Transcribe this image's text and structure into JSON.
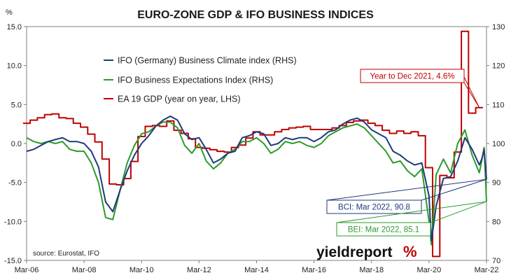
{
  "chart_data": {
    "type": "line",
    "title": "EURO-ZONE GDP & IFO BUSINESS INDICES",
    "y_left_unit": "%",
    "y_left_range": [
      -15,
      15
    ],
    "y_left_ticks": [
      "15.0",
      "10.0",
      "5.0",
      "0.0",
      "-5.0",
      "-10.0",
      "-15.0"
    ],
    "y_right_range": [
      70,
      130
    ],
    "y_right_ticks": [
      "130",
      "120",
      "110",
      "100",
      "90",
      "80",
      "70"
    ],
    "x_range": [
      "2006-03",
      "2022-03"
    ],
    "x_ticks": [
      "Mar-06",
      "Mar-08",
      "Mar-10",
      "Mar-12",
      "Mar-14",
      "Mar-16",
      "Mar-18",
      "Mar-20",
      "Mar-22"
    ],
    "grid": "none",
    "legend_position": "top-left",
    "series": [
      {
        "name": "IFO (Germany) Business Climate index (RHS)",
        "axis": "right",
        "color": "#1f3a7a",
        "points": [
          [
            "2006-03",
            98.0
          ],
          [
            "2006-06",
            98.5
          ],
          [
            "2006-09",
            99.5
          ],
          [
            "2006-12",
            100.5
          ],
          [
            "2007-03",
            101.0
          ],
          [
            "2007-06",
            101.5
          ],
          [
            "2007-09",
            100.5
          ],
          [
            "2007-12",
            100.5
          ],
          [
            "2008-03",
            100.0
          ],
          [
            "2008-06",
            98.0
          ],
          [
            "2008-09",
            94.0
          ],
          [
            "2008-12",
            85.0
          ],
          [
            "2009-03",
            82.5
          ],
          [
            "2009-06",
            88.0
          ],
          [
            "2009-09",
            93.0
          ],
          [
            "2009-12",
            97.0
          ],
          [
            "2010-03",
            100.0
          ],
          [
            "2010-06",
            102.0
          ],
          [
            "2010-09",
            104.5
          ],
          [
            "2010-12",
            106.0
          ],
          [
            "2011-03",
            107.0
          ],
          [
            "2011-06",
            106.0
          ],
          [
            "2011-09",
            102.5
          ],
          [
            "2011-12",
            101.0
          ],
          [
            "2012-03",
            101.5
          ],
          [
            "2012-06",
            98.5
          ],
          [
            "2012-09",
            95.0
          ],
          [
            "2012-12",
            96.0
          ],
          [
            "2013-03",
            97.5
          ],
          [
            "2013-06",
            98.0
          ],
          [
            "2013-09",
            101.5
          ],
          [
            "2013-12",
            102.0
          ],
          [
            "2014-03",
            103.0
          ],
          [
            "2014-06",
            102.5
          ],
          [
            "2014-09",
            99.5
          ],
          [
            "2014-12",
            100.0
          ],
          [
            "2015-03",
            101.5
          ],
          [
            "2015-06",
            101.0
          ],
          [
            "2015-09",
            101.5
          ],
          [
            "2015-12",
            101.5
          ],
          [
            "2016-03",
            100.5
          ],
          [
            "2016-06",
            101.5
          ],
          [
            "2016-09",
            103.0
          ],
          [
            "2016-12",
            103.5
          ],
          [
            "2017-03",
            105.0
          ],
          [
            "2017-06",
            106.0
          ],
          [
            "2017-09",
            106.5
          ],
          [
            "2017-12",
            105.5
          ],
          [
            "2018-03",
            103.5
          ],
          [
            "2018-06",
            102.5
          ],
          [
            "2018-09",
            101.5
          ],
          [
            "2018-12",
            98.0
          ],
          [
            "2019-03",
            97.0
          ],
          [
            "2019-06",
            95.5
          ],
          [
            "2019-09",
            94.5
          ],
          [
            "2019-12",
            95.0
          ],
          [
            "2020-03",
            86.5
          ],
          [
            "2020-04",
            75.0
          ],
          [
            "2020-06",
            84.0
          ],
          [
            "2020-09",
            91.0
          ],
          [
            "2020-12",
            91.5
          ],
          [
            "2021-03",
            95.5
          ],
          [
            "2021-06",
            101.5
          ],
          [
            "2021-09",
            98.5
          ],
          [
            "2021-12",
            94.5
          ],
          [
            "2022-01",
            96.0
          ],
          [
            "2022-02",
            98.5
          ],
          [
            "2022-03",
            90.8
          ]
        ]
      },
      {
        "name": "IFO Business Expectations Index (RHS)",
        "axis": "right",
        "color": "#2b9a2b",
        "points": [
          [
            "2006-03",
            101.5
          ],
          [
            "2006-06",
            100.5
          ],
          [
            "2006-09",
            100.0
          ],
          [
            "2006-12",
            100.5
          ],
          [
            "2007-03",
            100.0
          ],
          [
            "2007-06",
            100.5
          ],
          [
            "2007-09",
            98.5
          ],
          [
            "2007-12",
            98.0
          ],
          [
            "2008-03",
            98.0
          ],
          [
            "2008-06",
            95.0
          ],
          [
            "2008-09",
            90.0
          ],
          [
            "2008-12",
            81.0
          ],
          [
            "2009-03",
            80.5
          ],
          [
            "2009-06",
            88.0
          ],
          [
            "2009-09",
            95.0
          ],
          [
            "2009-12",
            99.5
          ],
          [
            "2010-03",
            102.5
          ],
          [
            "2010-06",
            103.0
          ],
          [
            "2010-09",
            104.5
          ],
          [
            "2010-12",
            105.5
          ],
          [
            "2011-03",
            105.5
          ],
          [
            "2011-06",
            104.0
          ],
          [
            "2011-09",
            99.5
          ],
          [
            "2011-12",
            97.5
          ],
          [
            "2012-03",
            100.0
          ],
          [
            "2012-06",
            95.5
          ],
          [
            "2012-09",
            93.5
          ],
          [
            "2012-12",
            95.0
          ],
          [
            "2013-03",
            97.5
          ],
          [
            "2013-06",
            98.5
          ],
          [
            "2013-09",
            100.5
          ],
          [
            "2013-12",
            100.5
          ],
          [
            "2014-03",
            101.5
          ],
          [
            "2014-06",
            100.0
          ],
          [
            "2014-09",
            97.5
          ],
          [
            "2014-12",
            98.5
          ],
          [
            "2015-03",
            100.5
          ],
          [
            "2015-06",
            100.0
          ],
          [
            "2015-09",
            100.5
          ],
          [
            "2015-12",
            99.5
          ],
          [
            "2016-03",
            99.0
          ],
          [
            "2016-06",
            100.0
          ],
          [
            "2016-09",
            102.0
          ],
          [
            "2016-12",
            103.0
          ],
          [
            "2017-03",
            104.0
          ],
          [
            "2017-06",
            104.5
          ],
          [
            "2017-09",
            105.0
          ],
          [
            "2017-12",
            104.0
          ],
          [
            "2018-03",
            102.0
          ],
          [
            "2018-06",
            100.0
          ],
          [
            "2018-09",
            98.0
          ],
          [
            "2018-12",
            95.0
          ],
          [
            "2019-03",
            95.5
          ],
          [
            "2019-06",
            93.0
          ],
          [
            "2019-09",
            91.5
          ],
          [
            "2019-12",
            93.5
          ],
          [
            "2020-03",
            80.0
          ],
          [
            "2020-04",
            74.0
          ],
          [
            "2020-06",
            92.0
          ],
          [
            "2020-09",
            96.0
          ],
          [
            "2020-12",
            92.5
          ],
          [
            "2021-03",
            100.0
          ],
          [
            "2021-06",
            103.5
          ],
          [
            "2021-09",
            97.0
          ],
          [
            "2021-12",
            92.5
          ],
          [
            "2022-01",
            95.5
          ],
          [
            "2022-02",
            99.0
          ],
          [
            "2022-03",
            85.1
          ]
        ]
      },
      {
        "name": "EA 19 GDP (year on year, LHS)",
        "axis": "left",
        "color": "#c00000",
        "points": [
          [
            "2006-03",
            2.6
          ],
          [
            "2006-06",
            3.0
          ],
          [
            "2006-09",
            3.3
          ],
          [
            "2006-12",
            3.7
          ],
          [
            "2007-03",
            3.8
          ],
          [
            "2007-06",
            3.3
          ],
          [
            "2007-09",
            3.2
          ],
          [
            "2007-12",
            2.6
          ],
          [
            "2008-03",
            2.1
          ],
          [
            "2008-06",
            1.2
          ],
          [
            "2008-09",
            0.2
          ],
          [
            "2008-12",
            -2.0
          ],
          [
            "2009-03",
            -5.2
          ],
          [
            "2009-06",
            -5.3
          ],
          [
            "2009-09",
            -4.5
          ],
          [
            "2009-12",
            -2.3
          ],
          [
            "2010-03",
            0.9
          ],
          [
            "2010-06",
            2.2
          ],
          [
            "2010-09",
            2.3
          ],
          [
            "2010-12",
            2.2
          ],
          [
            "2011-03",
            2.9
          ],
          [
            "2011-06",
            1.7
          ],
          [
            "2011-09",
            1.3
          ],
          [
            "2011-12",
            0.6
          ],
          [
            "2012-03",
            -0.5
          ],
          [
            "2012-06",
            -0.6
          ],
          [
            "2012-09",
            -0.8
          ],
          [
            "2012-12",
            -1.0
          ],
          [
            "2013-03",
            -1.1
          ],
          [
            "2013-06",
            -0.5
          ],
          [
            "2013-09",
            -0.2
          ],
          [
            "2013-12",
            0.7
          ],
          [
            "2014-03",
            1.5
          ],
          [
            "2014-06",
            1.1
          ],
          [
            "2014-09",
            1.1
          ],
          [
            "2014-12",
            1.5
          ],
          [
            "2015-03",
            1.8
          ],
          [
            "2015-06",
            2.0
          ],
          [
            "2015-09",
            2.1
          ],
          [
            "2015-12",
            2.2
          ],
          [
            "2016-03",
            1.8
          ],
          [
            "2016-06",
            1.8
          ],
          [
            "2016-09",
            1.8
          ],
          [
            "2016-12",
            2.0
          ],
          [
            "2017-03",
            2.3
          ],
          [
            "2017-06",
            2.7
          ],
          [
            "2017-09",
            2.9
          ],
          [
            "2017-12",
            3.0
          ],
          [
            "2018-03",
            2.6
          ],
          [
            "2018-06",
            2.3
          ],
          [
            "2018-09",
            1.7
          ],
          [
            "2018-12",
            1.3
          ],
          [
            "2019-03",
            1.6
          ],
          [
            "2019-06",
            1.3
          ],
          [
            "2019-09",
            1.5
          ],
          [
            "2019-12",
            1.0
          ],
          [
            "2020-03",
            -3.1
          ],
          [
            "2020-06",
            -14.5
          ],
          [
            "2020-09",
            -4.1
          ],
          [
            "2020-12",
            -4.4
          ],
          [
            "2021-03",
            -1.1
          ],
          [
            "2021-06",
            14.4
          ],
          [
            "2021-09",
            3.9
          ],
          [
            "2021-12",
            4.6
          ]
        ]
      }
    ],
    "annotations": [
      {
        "text": "Year to Dec 2021, 4.6%",
        "series": "EA 19 GDP (year on year, LHS)",
        "color": "#c00000"
      },
      {
        "text": "BCI: Mar 2022, 90.8",
        "series": "IFO (Germany) Business Climate index (RHS)",
        "color": "#1f3a7a"
      },
      {
        "text": "BEI: Mar 2022, 85.1",
        "series": "IFO Business Expectations Index (RHS)",
        "color": "#2b9a2b"
      }
    ],
    "source": "source: Eurostat, IFO"
  },
  "logo": {
    "main": "yieldreport",
    "pct": "%"
  }
}
